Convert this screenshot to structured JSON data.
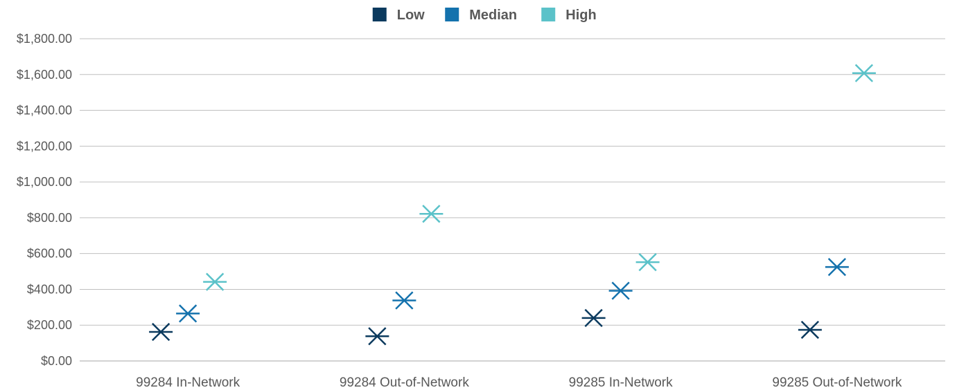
{
  "chart_data": {
    "type": "scatter",
    "marker": "star-x",
    "title": "",
    "xlabel": "",
    "ylabel": "",
    "categories": [
      "99284 In-Network",
      "99284 Out-of-Network",
      "99285 In-Network",
      "99285 Out-of-Network"
    ],
    "series": [
      {
        "name": "Low",
        "color": "#0b3a5e",
        "values": [
          162,
          138,
          240,
          174
        ]
      },
      {
        "name": "Median",
        "color": "#1472ad",
        "values": [
          265,
          338,
          392,
          525
        ]
      },
      {
        "name": "High",
        "color": "#5bc2c9",
        "values": [
          442,
          822,
          552,
          1608
        ]
      }
    ],
    "ylim": [
      0,
      1800
    ],
    "yticks": [
      0,
      200,
      400,
      600,
      800,
      1000,
      1200,
      1400,
      1600,
      1800
    ],
    "ytick_labels": [
      "$0.00",
      "$200.00",
      "$400.00",
      "$600.00",
      "$800.00",
      "$1,000.00",
      "$1,200.00",
      "$1,400.00",
      "$1,600.00",
      "$1,800.00"
    ],
    "grid": true,
    "legend_position": "top-center"
  }
}
